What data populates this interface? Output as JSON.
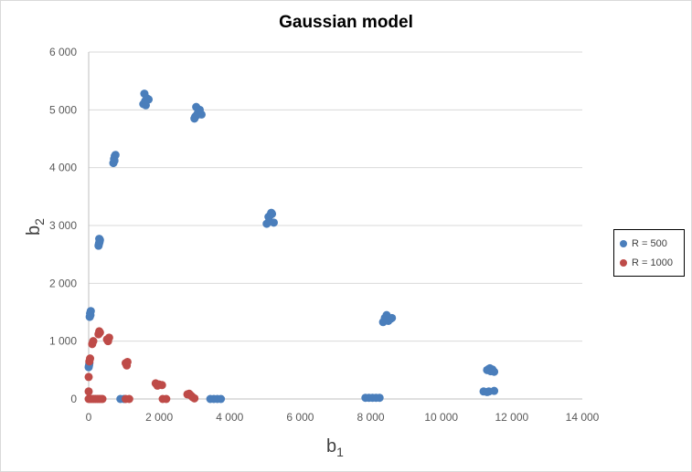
{
  "chart_data": {
    "type": "scatter",
    "title": "Gaussian model",
    "xlabel_main": "b",
    "xlabel_sub": "1",
    "ylabel_main": "b",
    "ylabel_sub": "2",
    "xlim": [
      0,
      14000
    ],
    "ylim": [
      0,
      6000
    ],
    "xticks": [
      0,
      2000,
      4000,
      6000,
      8000,
      10000,
      12000,
      14000
    ],
    "xtick_labels": [
      "0",
      "2 000",
      "4 000",
      "6 000",
      "8 000",
      "10 000",
      "12 000",
      "14 000"
    ],
    "yticks": [
      0,
      1000,
      2000,
      3000,
      4000,
      5000,
      6000
    ],
    "ytick_labels": [
      "0",
      "1 000",
      "2 000",
      "3 000",
      "4 000",
      "5 000",
      "6 000"
    ],
    "grid": "horizontal",
    "legend_position": "right",
    "series": [
      {
        "name": "R = 500",
        "color": "#4a7ebb",
        "points": [
          [
            30,
            1420
          ],
          [
            40,
            1480
          ],
          [
            60,
            1520
          ],
          [
            50,
            1450
          ],
          [
            0,
            550
          ],
          [
            20,
            620
          ],
          [
            10,
            580
          ],
          [
            280,
            2650
          ],
          [
            300,
            2700
          ],
          [
            320,
            2750
          ],
          [
            290,
            2680
          ],
          [
            310,
            2720
          ],
          [
            300,
            2770
          ],
          [
            700,
            4080
          ],
          [
            720,
            4150
          ],
          [
            740,
            4200
          ],
          [
            760,
            4220
          ],
          [
            730,
            4120
          ],
          [
            1550,
            5100
          ],
          [
            1600,
            5150
          ],
          [
            1650,
            5200
          ],
          [
            1700,
            5180
          ],
          [
            1580,
            5280
          ],
          [
            1620,
            5080
          ],
          [
            3000,
            4850
          ],
          [
            3050,
            4900
          ],
          [
            3100,
            4950
          ],
          [
            3150,
            5000
          ],
          [
            3050,
            5050
          ],
          [
            3200,
            4920
          ],
          [
            3020,
            4880
          ],
          [
            5050,
            3030
          ],
          [
            5100,
            3150
          ],
          [
            5150,
            3180
          ],
          [
            5200,
            3200
          ],
          [
            5250,
            3050
          ],
          [
            5180,
            3220
          ],
          [
            5120,
            3080
          ],
          [
            8350,
            1330
          ],
          [
            8400,
            1400
          ],
          [
            8450,
            1450
          ],
          [
            8500,
            1350
          ],
          [
            8550,
            1380
          ],
          [
            8600,
            1400
          ],
          [
            8420,
            1360
          ],
          [
            11300,
            500
          ],
          [
            11350,
            520
          ],
          [
            11400,
            480
          ],
          [
            11450,
            510
          ],
          [
            11500,
            470
          ],
          [
            11380,
            530
          ],
          [
            11200,
            130
          ],
          [
            11350,
            130
          ],
          [
            11500,
            140
          ],
          [
            11300,
            120
          ],
          [
            3450,
            0
          ],
          [
            3550,
            0
          ],
          [
            3650,
            0
          ],
          [
            3750,
            0
          ],
          [
            7850,
            20
          ],
          [
            7950,
            20
          ],
          [
            8050,
            20
          ],
          [
            8150,
            20
          ],
          [
            8250,
            20
          ],
          [
            900,
            0
          ],
          [
            1000,
            0
          ]
        ]
      },
      {
        "name": "R = 1000",
        "color": "#be4b48",
        "points": [
          [
            0,
            0
          ],
          [
            40,
            0
          ],
          [
            90,
            0
          ],
          [
            140,
            0
          ],
          [
            190,
            0
          ],
          [
            240,
            0
          ],
          [
            290,
            0
          ],
          [
            340,
            0
          ],
          [
            390,
            0
          ],
          [
            0,
            130
          ],
          [
            0,
            380
          ],
          [
            20,
            650
          ],
          [
            40,
            700
          ],
          [
            100,
            950
          ],
          [
            130,
            1000
          ],
          [
            280,
            1120
          ],
          [
            300,
            1170
          ],
          [
            320,
            1150
          ],
          [
            520,
            1030
          ],
          [
            550,
            1000
          ],
          [
            580,
            1060
          ],
          [
            1050,
            620
          ],
          [
            1080,
            580
          ],
          [
            1100,
            640
          ],
          [
            1900,
            270
          ],
          [
            2000,
            250
          ],
          [
            2080,
            240
          ],
          [
            1950,
            230
          ],
          [
            2800,
            80
          ],
          [
            2850,
            90
          ],
          [
            2900,
            60
          ],
          [
            2950,
            30
          ],
          [
            3000,
            10
          ],
          [
            1050,
            0
          ],
          [
            1150,
            0
          ],
          [
            2100,
            0
          ],
          [
            2200,
            0
          ]
        ]
      }
    ]
  }
}
